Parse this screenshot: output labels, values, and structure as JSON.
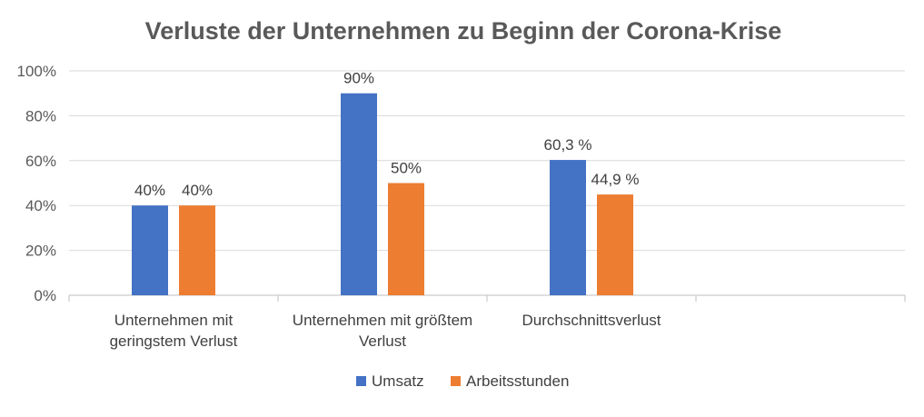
{
  "chart_data": {
    "type": "bar",
    "title": "Verluste der Unternehmen zu Beginn der Corona-Krise",
    "categories": [
      [
        "Unternehmen mit",
        "geringstem Verlust"
      ],
      [
        "Unternehmen mit größtem",
        "Verlust"
      ],
      [
        "Durchschnittsverlust"
      ],
      []
    ],
    "series": [
      {
        "name": "Umsatz",
        "color": "#4472C4",
        "values": [
          40,
          90,
          60.3,
          null
        ],
        "labels": [
          "40%",
          "90%",
          "60,3 %",
          ""
        ]
      },
      {
        "name": "Arbeitsstunden",
        "color": "#ED7D31",
        "values": [
          40,
          50,
          44.9,
          null
        ],
        "labels": [
          "40%",
          "50%",
          "44,9 %",
          ""
        ]
      }
    ],
    "ylim": [
      0,
      100
    ],
    "yticks": [
      0,
      20,
      40,
      60,
      80,
      100
    ],
    "ytick_labels": [
      "0%",
      "20%",
      "40%",
      "60%",
      "80%",
      "100%"
    ],
    "grid": true,
    "legend_position": "bottom",
    "xlabel": "",
    "ylabel": ""
  }
}
